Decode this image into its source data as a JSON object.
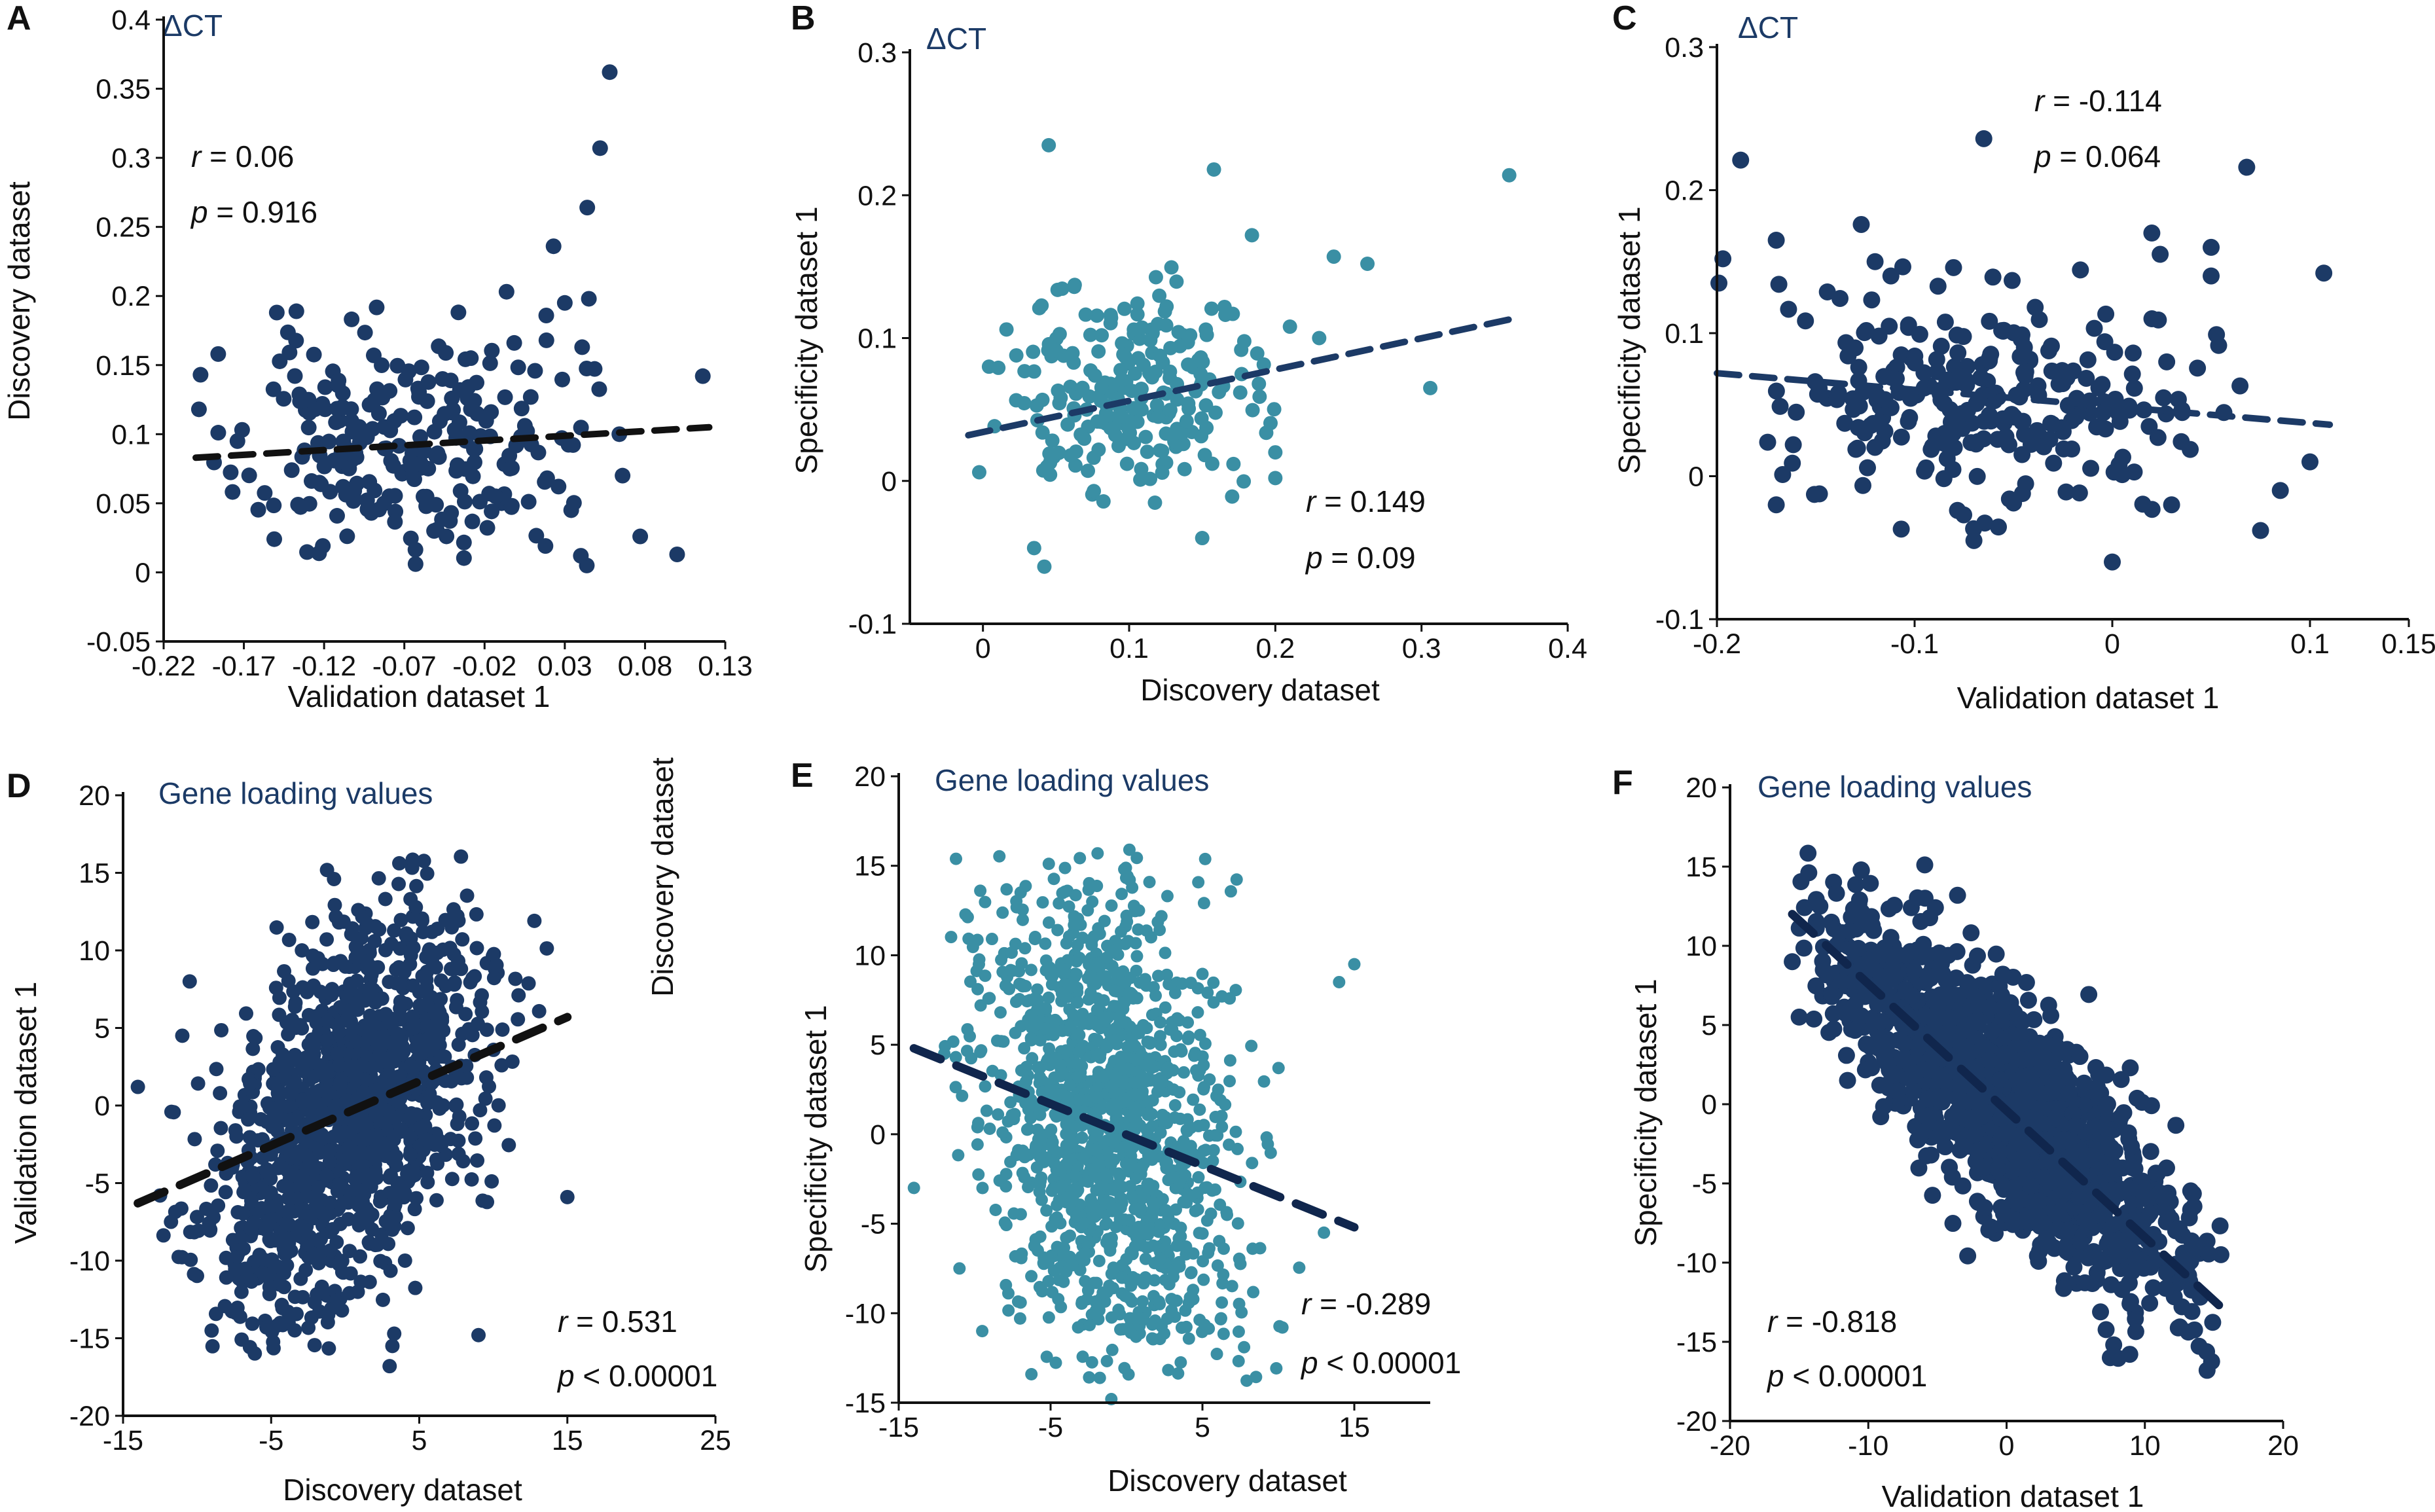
{
  "colors": {
    "navy": "#1c3a66",
    "teal": "#3a8fa4",
    "line_dark": "#111111",
    "line_navy": "#1c3a66",
    "line_deep": "#10264d",
    "axis": "#111111"
  },
  "chart_data": [
    {
      "panel": "A",
      "type": "scatter",
      "subtitle": "ΔCT",
      "xlabel": "Validation dataset 1",
      "ylabel": "Discovery dataset",
      "xlim": [
        -0.22,
        0.13
      ],
      "ylim": [
        -0.05,
        0.4
      ],
      "xticks": [
        -0.22,
        -0.17,
        -0.12,
        -0.07,
        -0.02,
        0.03,
        0.08,
        0.13
      ],
      "xtick_labels": [
        "-0.22",
        "-0.17",
        "-0.12",
        "-0.07",
        "-0.02",
        "0.03",
        "0.08",
        "0.13"
      ],
      "yticks": [
        -0.05,
        0,
        0.05,
        0.1,
        0.15,
        0.2,
        0.25,
        0.3,
        0.35,
        0.4
      ],
      "ytick_labels": [
        "-0.05",
        "0",
        "0.05",
        "0.1",
        "0.15",
        "0.2",
        "0.25",
        "0.3",
        "0.35",
        "0.4"
      ],
      "stat_r": "0.06",
      "stat_p": "0.916",
      "stat_p_op": "=",
      "fit": {
        "x": [
          -0.2,
          0.12
        ],
        "y": [
          0.083,
          0.105
        ]
      },
      "point_color": "navy",
      "fit_color": "line_dark",
      "outliers": [
        [
          0.058,
          0.362
        ],
        [
          0.052,
          0.307
        ],
        [
          0.044,
          0.264
        ],
        [
          0.023,
          0.236
        ],
        [
          0.045,
          0.198
        ],
        [
          0.03,
          0.195
        ],
        [
          -0.197,
          0.143
        ],
        [
          0.116,
          0.142
        ],
        [
          -0.186,
          0.158
        ],
        [
          0.1,
          0.013
        ],
        [
          0.064,
          0.1
        ],
        [
          0.066,
          0.07
        ],
        [
          0.077,
          0.026
        ],
        [
          -0.198,
          0.118
        ],
        [
          -0.174,
          0.095
        ],
        [
          0.04,
          0.012
        ],
        [
          -0.063,
          0.006
        ],
        [
          0.034,
          0.045
        ]
      ],
      "cluster": {
        "n": 240,
        "cx": -0.07,
        "cy": 0.09,
        "sx": 0.052,
        "sy": 0.045,
        "rho": 0.05,
        "seed": 11,
        "xmin": -0.19,
        "xmax": 0.06,
        "ymin": 0.0,
        "ymax": 0.22
      }
    },
    {
      "panel": "B",
      "type": "scatter",
      "subtitle": "ΔCT",
      "xlabel": "Discovery dataset",
      "ylabel": "Specificity dataset 1",
      "xlim": [
        -0.05,
        0.4
      ],
      "ylim": [
        -0.1,
        0.3
      ],
      "xticks": [
        0,
        0.1,
        0.2,
        0.3,
        0.4
      ],
      "xtick_labels": [
        "0",
        "0.1",
        "0.2",
        "0.3",
        "0.4"
      ],
      "yticks": [
        -0.1,
        0,
        0.1,
        0.2,
        0.3
      ],
      "ytick_labels": [
        "-0.1",
        "0",
        "0.1",
        "0.2",
        "0.3"
      ],
      "stat_r": "0.149",
      "stat_p": "0.09",
      "stat_p_op": "=",
      "fit": {
        "x": [
          -0.01,
          0.36
        ],
        "y": [
          0.032,
          0.113
        ]
      },
      "point_color": "teal",
      "fit_color": "line_navy",
      "outliers": [
        [
          0.045,
          0.235
        ],
        [
          0.158,
          0.218
        ],
        [
          0.36,
          0.214
        ],
        [
          0.24,
          0.157
        ],
        [
          0.263,
          0.152
        ],
        [
          0.184,
          0.172
        ],
        [
          0.306,
          0.065
        ],
        [
          0.2,
          0.02
        ],
        [
          0.2,
          0.002
        ],
        [
          0.15,
          -0.04
        ],
        [
          0.035,
          -0.047
        ],
        [
          0.042,
          -0.06
        ],
        [
          0.23,
          0.1
        ],
        [
          0.21,
          0.108
        ]
      ],
      "cluster": {
        "n": 230,
        "cx": 0.1,
        "cy": 0.06,
        "sx": 0.045,
        "sy": 0.04,
        "rho": 0.15,
        "seed": 23,
        "xmin": -0.01,
        "xmax": 0.2,
        "ymin": -0.03,
        "ymax": 0.16
      }
    },
    {
      "panel": "C",
      "type": "scatter",
      "subtitle": "ΔCT",
      "xlabel": "Validation dataset 1",
      "ylabel": "Specificity dataset 1",
      "xlim": [
        -0.2,
        0.15
      ],
      "ylim": [
        -0.1,
        0.3
      ],
      "xticks": [
        -0.2,
        -0.1,
        0,
        0.1,
        0.15
      ],
      "xtick_labels": [
        "-0.2",
        "-0.1",
        "0",
        "0.1",
        "0.15"
      ],
      "yticks": [
        -0.1,
        0,
        0.1,
        0.2,
        0.3
      ],
      "ytick_labels": [
        "-0.1",
        "0",
        "0.1",
        "0.2",
        "0.3"
      ],
      "stat_r": "-0.114",
      "stat_p": "0.064",
      "stat_p_op": "=",
      "fit": {
        "x": [
          -0.2,
          0.11
        ],
        "y": [
          0.072,
          0.036
        ]
      },
      "point_color": "navy",
      "fit_color": "line_navy",
      "outliers": [
        [
          -0.065,
          0.236
        ],
        [
          -0.188,
          0.221
        ],
        [
          0.068,
          0.216
        ],
        [
          -0.197,
          0.152
        ],
        [
          -0.199,
          0.135
        ],
        [
          0.107,
          0.142
        ],
        [
          -0.17,
          0.165
        ],
        [
          -0.127,
          0.176
        ],
        [
          -0.12,
          0.15
        ],
        [
          -0.112,
          0.14
        ],
        [
          0.02,
          0.17
        ],
        [
          0.05,
          0.16
        ],
        [
          0.05,
          0.14
        ],
        [
          0.1,
          0.01
        ],
        [
          0.085,
          -0.01
        ],
        [
          0.075,
          -0.038
        ],
        [
          -0.17,
          -0.02
        ],
        [
          0.0,
          -0.06
        ],
        [
          0.03,
          -0.02
        ],
        [
          -0.07,
          -0.045
        ]
      ],
      "cluster": {
        "n": 260,
        "cx": -0.06,
        "cy": 0.055,
        "sx": 0.055,
        "sy": 0.038,
        "rho": -0.1,
        "seed": 37,
        "xmin": -0.18,
        "xmax": 0.07,
        "ymin": -0.045,
        "ymax": 0.16
      }
    },
    {
      "panel": "D",
      "type": "scatter",
      "subtitle": "Gene loading values",
      "xlabel": "Discovery dataset",
      "ylabel": "Validation dataset 1",
      "side_label": "Discovery dataset",
      "xlim": [
        -15,
        25
      ],
      "ylim": [
        -20,
        20
      ],
      "xticks": [
        -15,
        -5,
        5,
        15,
        25
      ],
      "xtick_labels": [
        "-15",
        "-5",
        "5",
        "15",
        "25"
      ],
      "yticks": [
        -20,
        -15,
        -10,
        -5,
        0,
        5,
        10,
        15,
        20
      ],
      "ytick_labels": [
        "-20",
        "-15",
        "-10",
        "-5",
        "0",
        "5",
        "10",
        "15",
        "20"
      ],
      "stat_r": "0.531",
      "stat_p": "0.00001",
      "stat_p_op": "<",
      "fit": {
        "x": [
          -14,
          15
        ],
        "y": [
          -6.3,
          5.7
        ]
      },
      "point_color": "navy",
      "fit_color": "line_dark",
      "outliers": [
        [
          -14.0,
          1.2
        ],
        [
          -12.5,
          -5.8
        ],
        [
          3.0,
          -16.8
        ],
        [
          9.0,
          -14.8
        ],
        [
          15.0,
          -5.9
        ],
        [
          -11.0,
          4.5
        ],
        [
          -10.5,
          8.0
        ]
      ],
      "cluster": {
        "n": 1300,
        "cx": 0.0,
        "cy": -1.0,
        "sx": 4.5,
        "sy": 6.5,
        "rho": 0.45,
        "seed": 51,
        "xmin": -13,
        "xmax": 14,
        "ymin": -16,
        "ymax": 16.5
      }
    },
    {
      "panel": "E",
      "type": "scatter",
      "subtitle": "Gene loading values",
      "xlabel": "Discovery dataset",
      "ylabel": "Specificity dataset 1",
      "xlim": [
        -15,
        20
      ],
      "ylim": [
        -15,
        20
      ],
      "xticks": [
        -15,
        -5,
        5,
        15
      ],
      "xtick_labels": [
        "-15",
        "-5",
        "5",
        "15"
      ],
      "yticks": [
        -15,
        -10,
        -5,
        0,
        5,
        10,
        15,
        20
      ],
      "ytick_labels": [
        "-15",
        "-10",
        "-5",
        "0",
        "5",
        "10",
        "15",
        "20"
      ],
      "stat_r": "-0.289",
      "stat_p": "0.00001",
      "stat_p_op": "<",
      "fit": {
        "x": [
          -14,
          15
        ],
        "y": [
          4.8,
          -5.2
        ]
      },
      "point_color": "teal",
      "fit_color": "line_deep",
      "outliers": [
        [
          -14.0,
          -3.0
        ],
        [
          15.0,
          9.5
        ],
        [
          14.0,
          8.5
        ],
        [
          -12.0,
          4.5
        ],
        [
          -11.0,
          -7.5
        ],
        [
          -9.5,
          -11.0
        ],
        [
          13.0,
          -5.5
        ],
        [
          -1.0,
          -14.8
        ]
      ],
      "cluster": {
        "n": 1300,
        "cx": -1.0,
        "cy": 0.5,
        "sx": 4.3,
        "sy": 6.8,
        "rho": -0.25,
        "seed": 63,
        "xmin": -12,
        "xmax": 13,
        "ymin": -14,
        "ymax": 16
      }
    },
    {
      "panel": "F",
      "type": "scatter",
      "subtitle": "Gene loading values",
      "xlabel": "Validation dataset 1",
      "ylabel": "Specificity dataset 1",
      "xlim": [
        -20,
        20
      ],
      "ylim": [
        -20,
        20
      ],
      "xticks": [
        -20,
        -10,
        0,
        10,
        20
      ],
      "xtick_labels": [
        "-20",
        "-10",
        "0",
        "10",
        "20"
      ],
      "yticks": [
        -20,
        -15,
        -10,
        -5,
        0,
        5,
        10,
        15,
        20
      ],
      "ytick_labels": [
        "-20",
        "-15",
        "-10",
        "-5",
        "0",
        "5",
        "10",
        "15",
        "20"
      ],
      "stat_r": "-0.818",
      "stat_p": "0.00001",
      "stat_p_op": "<",
      "fit": {
        "x": [
          -15.5,
          15.5
        ],
        "y": [
          12.0,
          -12.8
        ]
      },
      "point_color": "navy",
      "fit_color": "line_deep",
      "outliers": [
        [
          -15.5,
          9.0
        ],
        [
          -15.0,
          5.5
        ],
        [
          15.5,
          -9.5
        ],
        [
          14.5,
          -16.8
        ],
        [
          7.5,
          -16.0
        ],
        [
          -13.5,
          12.5
        ]
      ],
      "cluster": {
        "n": 1600,
        "cx": 0.0,
        "cy": 0.0,
        "sx": 6.5,
        "sy": 6.0,
        "rho": -0.82,
        "seed": 79,
        "xmin": -15,
        "xmax": 15.5,
        "ymin": -16.5,
        "ymax": 16.5
      }
    }
  ]
}
